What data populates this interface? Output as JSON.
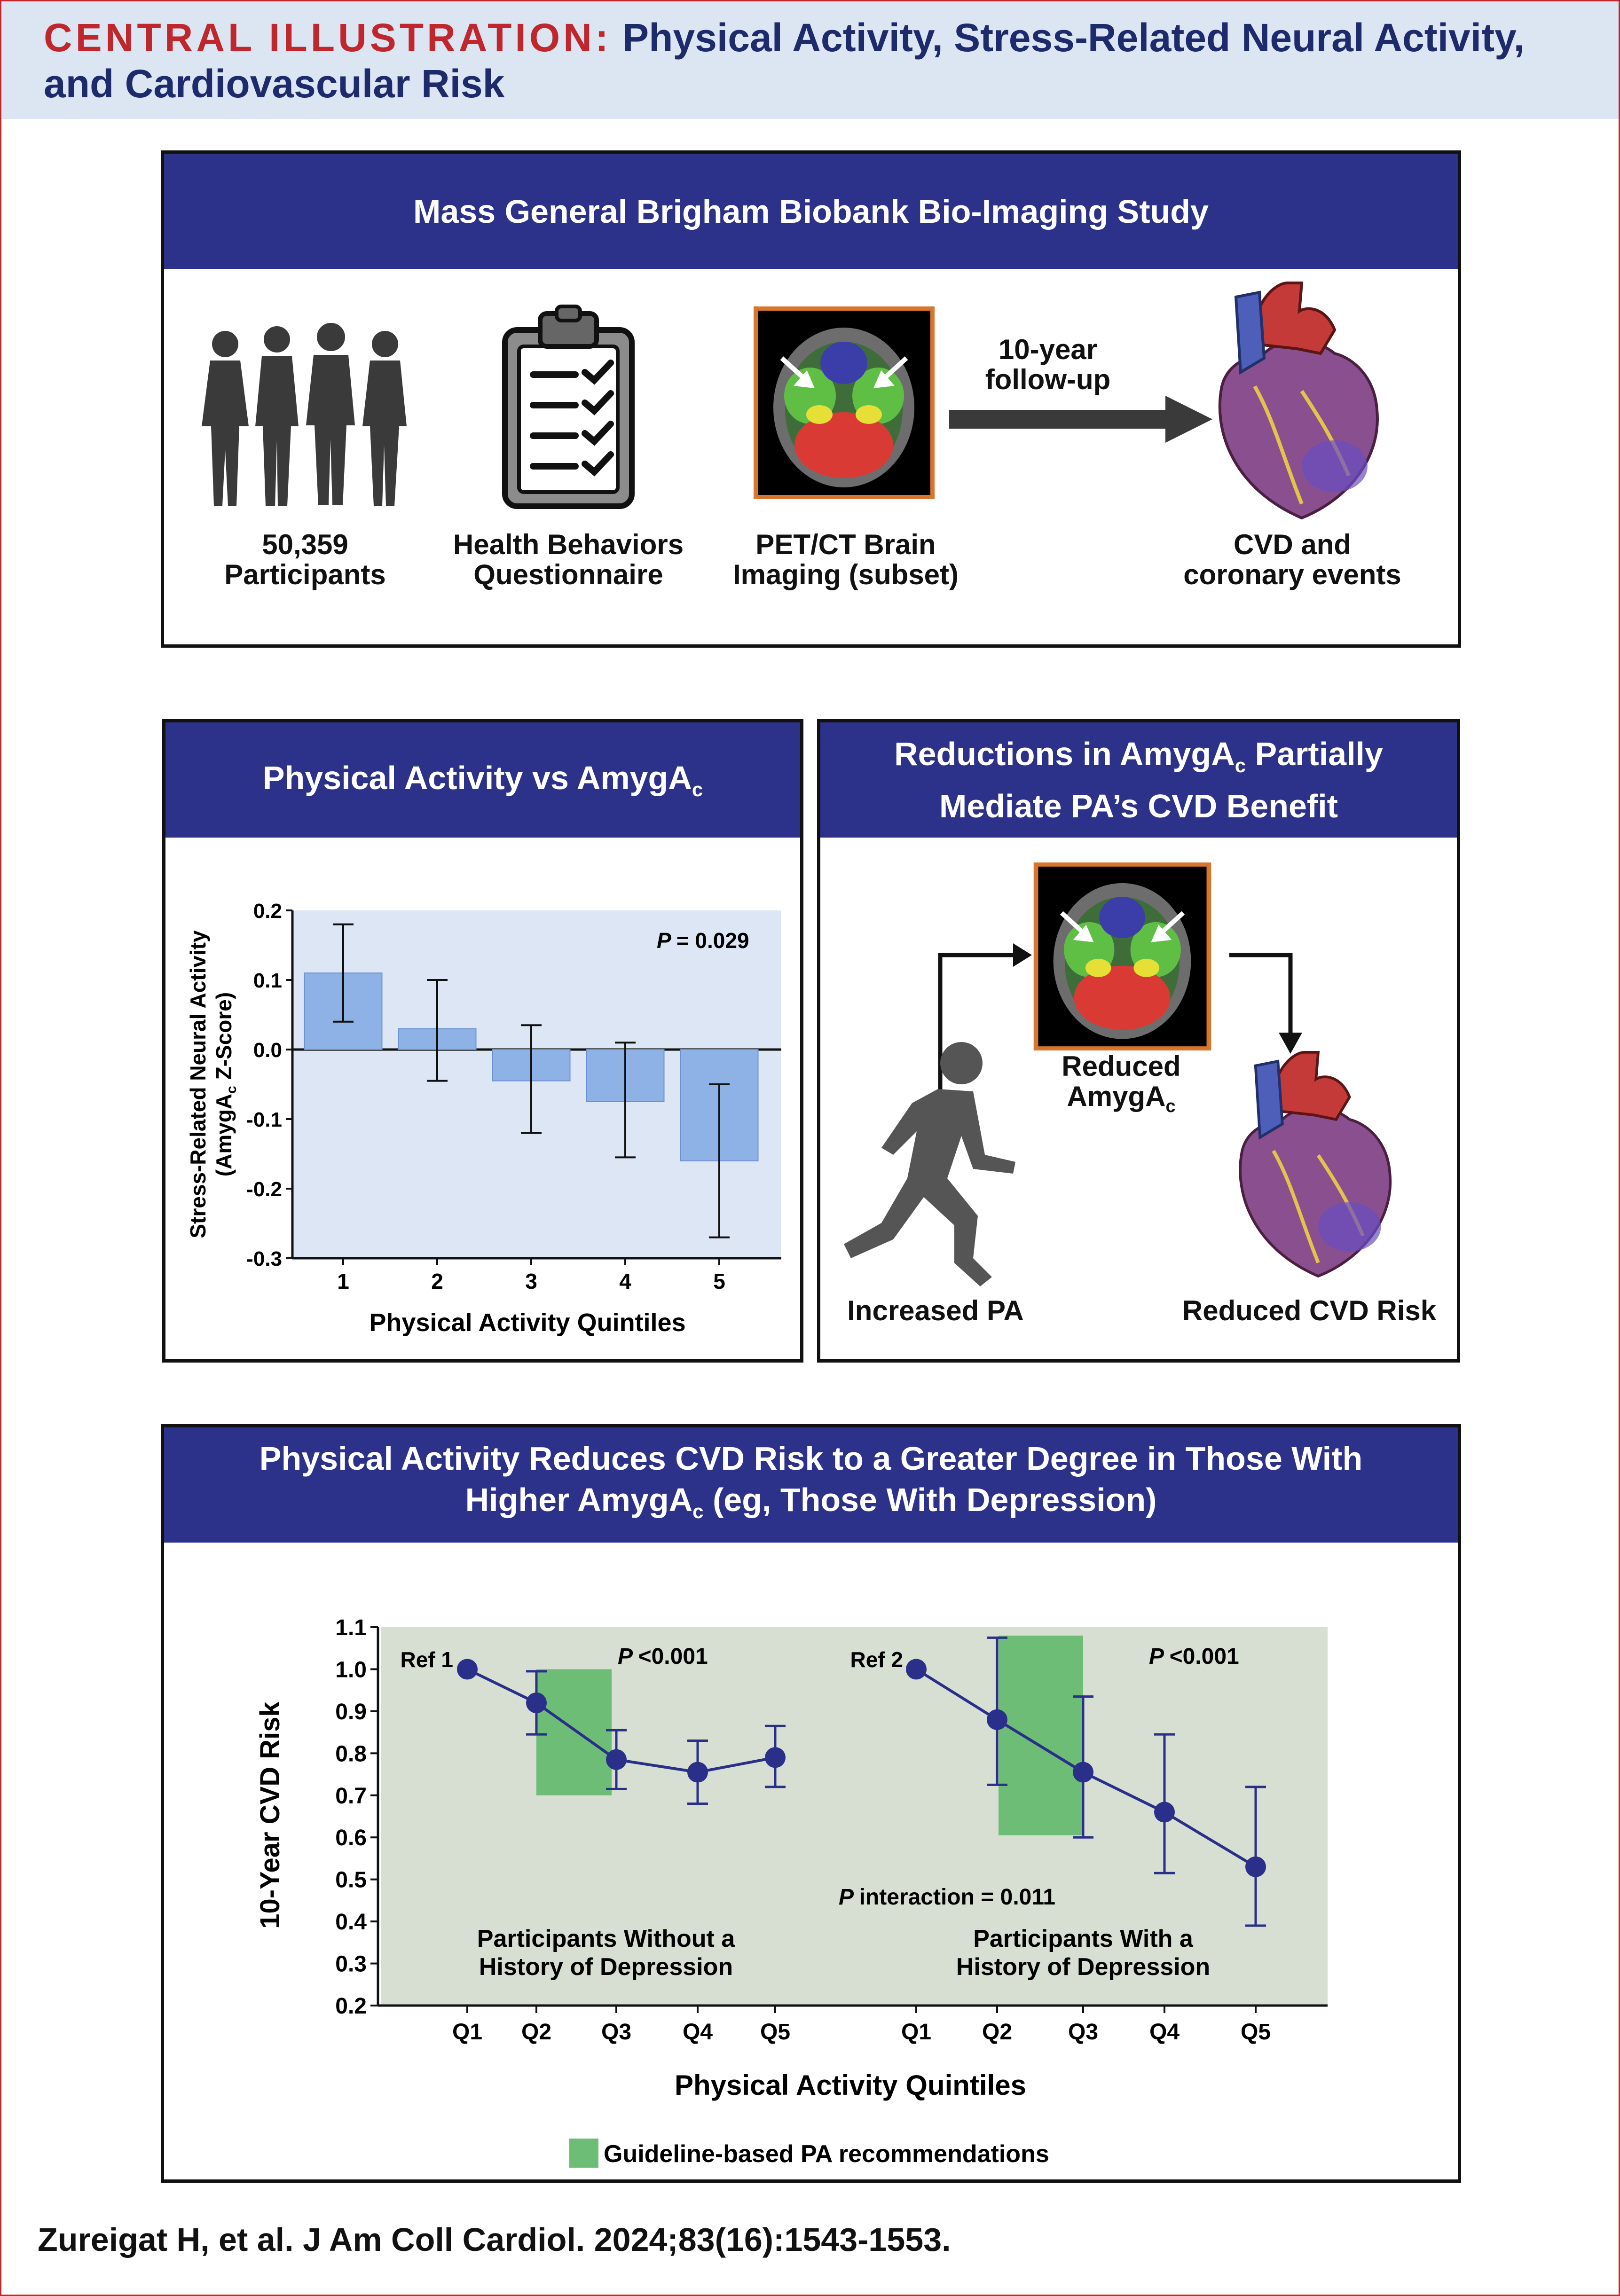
{
  "header": {
    "label": "CENTRAL ILLUSTRATION:",
    "title_line1": "Physical Activity, Stress-Related Neural Activity,",
    "title_line2": "and Cardiovascular Risk"
  },
  "study": {
    "title": "Mass General Brigham Biobank Bio-Imaging Study",
    "participants_line1": "50,359",
    "participants_line2": "Participants",
    "questionnaire_line1": "Health Behaviors",
    "questionnaire_line2": "Questionnaire",
    "imaging_line1": "PET/CT Brain",
    "imaging_line2": "Imaging (subset)",
    "followup_line1": "10-year",
    "followup_line2": "follow-up",
    "outcome_line1": "CVD and",
    "outcome_line2": "coronary events"
  },
  "panel_bar": {
    "title": "Physical Activity vs AmygA",
    "title_sub": "c",
    "p_label": "P",
    "p_value": "= 0.029",
    "xlabel": "Physical Activity Quintiles",
    "ylabel_line1": "Stress-Related Neural Activity",
    "ylabel_line2a": "(AmygA",
    "ylabel_line2_sub": "c",
    "ylabel_line2b": " Z-Score)"
  },
  "panel_mediation": {
    "title_line1a": "Reductions in AmygA",
    "title_line1_sub": "c",
    "title_line1b": " Partially",
    "title_line2": "Mediate PA’s CVD Benefit",
    "reduced_line1": "Reduced",
    "reduced_line2": "AmygA",
    "reduced_sub": "c",
    "increased_pa": "Increased PA",
    "reduced_cvd": "Reduced CVD Risk"
  },
  "panel_line": {
    "title_line1": "Physical Activity Reduces CVD Risk to a Greater Degree in Those With",
    "title_line2a": "Higher AmygA",
    "title_line2_sub": "c",
    "title_line2b": " (eg, Those With Depression)",
    "ylabel": "10-Year CVD Risk",
    "xlabel": "Physical Activity Quintiles",
    "ref1": "Ref 1",
    "ref2": "Ref 2",
    "p1_label": "P",
    "p1_value": "<0.001",
    "p2_label": "P",
    "p2_value": "<0.001",
    "pint_label": "P",
    "pint_value": " interaction = 0.011",
    "group1_line1": "Participants Without a",
    "group1_line2": "History of Depression",
    "group2_line1": "Participants With a",
    "group2_line2": "History of Depression",
    "legend": "Guideline-based PA recommendations"
  },
  "citation": "Zureigat H, et al. J Am Coll Cardiol. 2024;83(16):1543-1553.",
  "colors": {
    "navy": "#2c3189",
    "accent_red": "#c0272d",
    "bar_blue": "#8fb2e6",
    "plot_bg_blue": "#dce6f5",
    "plot_bg_green": "#d6dfd1",
    "guideline_green": "#6ebd77",
    "line_navy": "#2a2f8a"
  },
  "chart_data": [
    {
      "type": "bar",
      "title": "Physical Activity vs AmygAc",
      "xlabel": "Physical Activity Quintiles",
      "ylabel": "Stress-Related Neural Activity (AmygAc Z-Score)",
      "categories": [
        "1",
        "2",
        "3",
        "4",
        "5"
      ],
      "values": [
        0.11,
        0.03,
        -0.045,
        -0.075,
        -0.16
      ],
      "ci_low": [
        0.04,
        -0.045,
        -0.12,
        -0.155,
        -0.27
      ],
      "ci_high": [
        0.18,
        0.1,
        0.035,
        0.01,
        -0.05
      ],
      "ylim": [
        -0.3,
        0.2
      ],
      "yticks": [
        "0.2",
        "0.1",
        "0.0",
        "-0.1",
        "-0.2",
        "-0.3"
      ],
      "annotation": "P = 0.029"
    },
    {
      "type": "line",
      "ylabel": "10-Year CVD Risk",
      "xlabel": "Physical Activity Quintiles",
      "ylim": [
        0.2,
        1.1
      ],
      "yticks": [
        "1.1",
        "1.0",
        "0.9",
        "0.8",
        "0.7",
        "0.6",
        "0.5",
        "0.4",
        "0.3",
        "0.2"
      ],
      "categories": [
        "Q1",
        "Q2",
        "Q3",
        "Q4",
        "Q5"
      ],
      "series": [
        {
          "name": "Participants Without a History of Depression",
          "values": [
            1.0,
            0.92,
            0.785,
            0.755,
            0.79
          ],
          "ci_low": [
            1.0,
            0.845,
            0.715,
            0.68,
            0.72
          ],
          "ci_high": [
            1.0,
            0.995,
            0.855,
            0.83,
            0.865
          ],
          "guideline_band": [
            0.7,
            1.0
          ]
        },
        {
          "name": "Participants With a History of Depression",
          "values": [
            1.0,
            0.88,
            0.755,
            0.66,
            0.53
          ],
          "ci_low": [
            1.0,
            0.725,
            0.6,
            0.515,
            0.39
          ],
          "ci_high": [
            1.0,
            1.075,
            0.935,
            0.845,
            0.72
          ],
          "guideline_band": [
            0.605,
            1.08
          ]
        }
      ]
    }
  ]
}
